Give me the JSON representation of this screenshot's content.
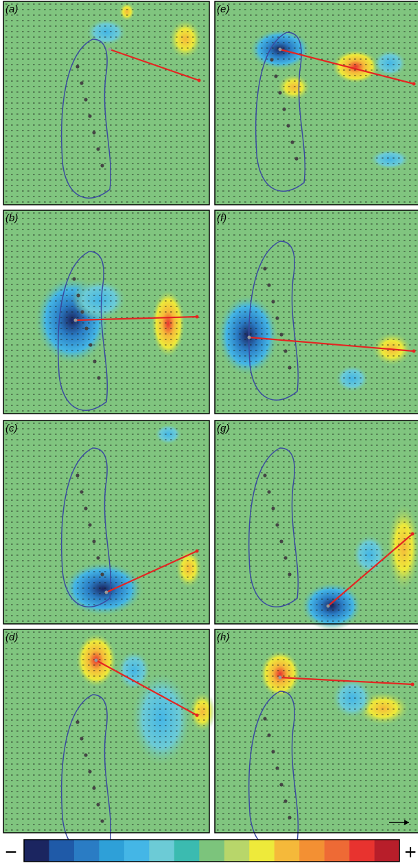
{
  "panels": [
    {
      "label": "(a)"
    },
    {
      "label": "(b)"
    },
    {
      "label": "(c)"
    },
    {
      "label": "(d)"
    },
    {
      "label": "(e)"
    },
    {
      "label": "(f)"
    },
    {
      "label": "(g)"
    },
    {
      "label": "(h)"
    }
  ],
  "colorbar": {
    "minus": "−",
    "plus": "+"
  }
}
